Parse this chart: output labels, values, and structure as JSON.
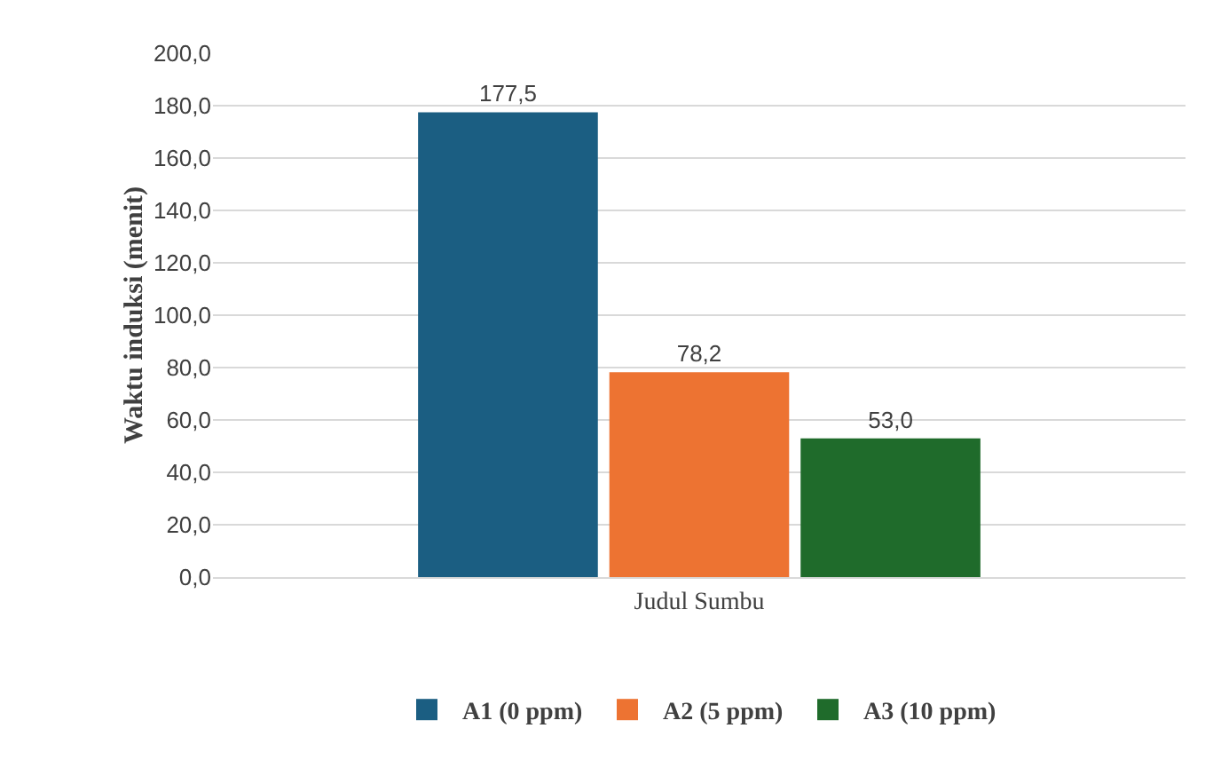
{
  "chart_data": {
    "type": "bar",
    "ylabel": "Waktu induksi (menit)",
    "categories": [
      "Judul Sumbu"
    ],
    "series": [
      {
        "name": "A1 (0 ppm)",
        "color": "#1b5e82",
        "values": [
          177.5
        ],
        "value_labels": [
          "177,5"
        ]
      },
      {
        "name": "A2 (5 ppm)",
        "color": "#ed7332",
        "values": [
          78.2
        ],
        "value_labels": [
          "78,2"
        ]
      },
      {
        "name": "A3 (10 ppm)",
        "color": "#1f6b2b",
        "values": [
          53.0
        ],
        "value_labels": [
          "53,0"
        ]
      }
    ],
    "ylim": [
      0,
      200
    ],
    "yticks": [
      {
        "value": 0,
        "label": "0,0"
      },
      {
        "value": 20,
        "label": "20,0"
      },
      {
        "value": 40,
        "label": "40,0"
      },
      {
        "value": 60,
        "label": "60,0"
      },
      {
        "value": 80,
        "label": "80,0"
      },
      {
        "value": 100,
        "label": "100,0"
      },
      {
        "value": 120,
        "label": "120,0"
      },
      {
        "value": 140,
        "label": "140,0"
      },
      {
        "value": 160,
        "label": "160,0"
      },
      {
        "value": 180,
        "label": "180,0"
      },
      {
        "value": 200,
        "label": "200,0"
      }
    ],
    "grid": "y",
    "legend": "bottom"
  }
}
